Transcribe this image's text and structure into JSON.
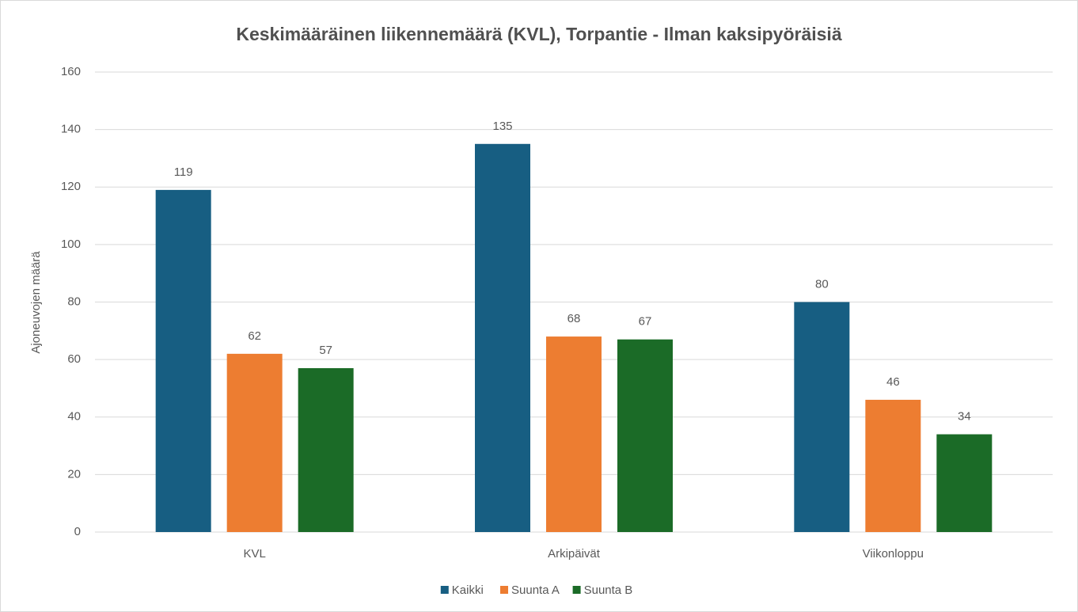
{
  "chart_data": {
    "type": "bar",
    "title": "Keskimääräinen liikennemäärä (KVL), Torpantie - Ilman kaksipyöräisiä",
    "ylabel": "Ajoneuvojen määrä",
    "categories": [
      "KVL",
      "Arkipäivät",
      "Viikonloppu"
    ],
    "series": [
      {
        "name": "Kaikki",
        "color": "#175e82",
        "values": [
          119,
          135,
          80
        ]
      },
      {
        "name": "Suunta A",
        "color": "#ed7d31",
        "values": [
          62,
          68,
          46
        ]
      },
      {
        "name": "Suunta B",
        "color": "#1b6b27",
        "values": [
          57,
          67,
          34
        ]
      }
    ],
    "ylim": [
      0,
      160
    ],
    "yticks": [
      0,
      20,
      40,
      60,
      80,
      100,
      120,
      140,
      160
    ],
    "grid": true,
    "legend": "bottom"
  }
}
